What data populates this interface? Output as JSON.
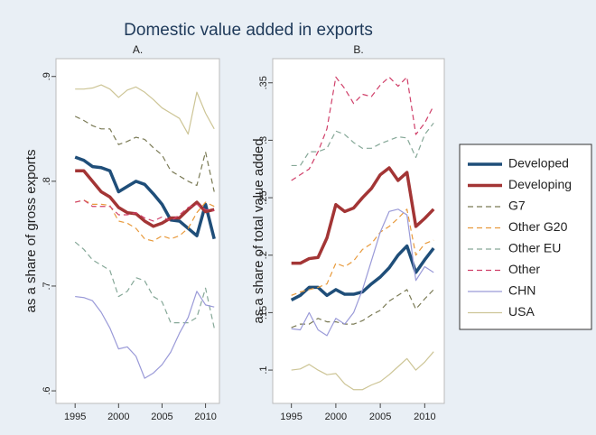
{
  "title": "Domestic value added in exports",
  "legend": [
    {
      "name": "Developed",
      "color": "#1f4e79",
      "width": 3.5,
      "dash": "none"
    },
    {
      "name": "Developing",
      "color": "#a33535",
      "width": 3.5,
      "dash": "none"
    },
    {
      "name": "G7",
      "color": "#7a7a55",
      "width": 1.2,
      "dash": "6 4"
    },
    {
      "name": "Other G20",
      "color": "#e89a3c",
      "width": 1.2,
      "dash": "6 4"
    },
    {
      "name": "Other EU",
      "color": "#86a898",
      "width": 1.2,
      "dash": "6 4"
    },
    {
      "name": "Other",
      "color": "#d0406a",
      "width": 1.2,
      "dash": "6 4"
    },
    {
      "name": "CHN",
      "color": "#9a9ad8",
      "width": 1.2,
      "dash": "none"
    },
    {
      "name": "USA",
      "color": "#cdc596",
      "width": 1.2,
      "dash": "none"
    }
  ],
  "chart_data": [
    {
      "type": "line",
      "title": "A.",
      "y_label": "as a share of gross exports",
      "x": [
        1995,
        1996,
        1997,
        1998,
        1999,
        2000,
        2001,
        2002,
        2003,
        2004,
        2005,
        2006,
        2007,
        2008,
        2009,
        2010,
        2011
      ],
      "xlim": [
        1992.8,
        2011.6
      ],
      "xticks": [
        1995,
        2000,
        2005,
        2010
      ],
      "ylim": [
        0.588,
        0.917
      ],
      "yticks": [
        {
          "value": 0.6,
          "label": ".6"
        },
        {
          "value": 0.7,
          "label": ".7"
        },
        {
          "value": 0.8,
          "label": ".8"
        },
        {
          "value": 0.9,
          "label": ".9"
        }
      ],
      "series": [
        {
          "values": [
            0.823,
            0.82,
            0.814,
            0.813,
            0.81,
            0.79,
            0.795,
            0.8,
            0.797,
            0.788,
            0.778,
            0.763,
            0.762,
            0.755,
            0.748,
            0.778,
            0.745
          ]
        },
        {
          "values": [
            0.81,
            0.81,
            0.8,
            0.79,
            0.785,
            0.775,
            0.77,
            0.769,
            0.762,
            0.757,
            0.76,
            0.765,
            0.765,
            0.773,
            0.78,
            0.771,
            0.773
          ]
        },
        {
          "values": [
            0.862,
            0.858,
            0.853,
            0.85,
            0.85,
            0.835,
            0.838,
            0.842,
            0.84,
            0.832,
            0.825,
            0.81,
            0.805,
            0.8,
            0.796,
            0.828,
            0.79
          ]
        },
        {
          "values": [
            0.78,
            0.782,
            0.778,
            0.778,
            0.777,
            0.762,
            0.76,
            0.755,
            0.745,
            0.743,
            0.748,
            0.745,
            0.748,
            0.755,
            0.77,
            0.78,
            0.776
          ]
        },
        {
          "values": [
            0.742,
            0.735,
            0.725,
            0.72,
            0.715,
            0.69,
            0.695,
            0.708,
            0.705,
            0.69,
            0.685,
            0.665,
            0.665,
            0.665,
            0.67,
            0.698,
            0.66
          ]
        },
        {
          "values": [
            0.78,
            0.782,
            0.776,
            0.776,
            0.776,
            0.768,
            0.768,
            0.77,
            0.765,
            0.762,
            0.766,
            0.762,
            0.768,
            0.775,
            0.778,
            0.773,
            0.772
          ]
        },
        {
          "values": [
            0.69,
            0.689,
            0.686,
            0.675,
            0.66,
            0.64,
            0.642,
            0.633,
            0.612,
            0.617,
            0.625,
            0.637,
            0.655,
            0.67,
            0.695,
            0.682,
            0.68
          ]
        },
        {
          "values": [
            0.888,
            0.888,
            0.889,
            0.892,
            0.888,
            0.88,
            0.887,
            0.89,
            0.885,
            0.878,
            0.87,
            0.865,
            0.86,
            0.845,
            0.885,
            0.865,
            0.85
          ]
        }
      ]
    },
    {
      "type": "line",
      "title": "B.",
      "y_label": "as a share of total value added",
      "x": [
        1995,
        1996,
        1997,
        1998,
        1999,
        2000,
        2001,
        2002,
        2003,
        2004,
        2005,
        2006,
        2007,
        2008,
        2009,
        2010,
        2011
      ],
      "xlim": [
        1992.9,
        2012.2
      ],
      "xticks": [
        1995,
        2000,
        2005,
        2010
      ],
      "ylim": [
        0.071,
        0.371
      ],
      "yticks": [
        {
          "value": 0.1,
          "label": ".1"
        },
        {
          "value": 0.15,
          "label": ".15"
        },
        {
          "value": 0.2,
          "label": ".2"
        },
        {
          "value": 0.25,
          "label": ".25"
        },
        {
          "value": 0.3,
          "label": ".3"
        },
        {
          "value": 0.35,
          "label": ".35"
        }
      ],
      "series": [
        {
          "values": [
            0.161,
            0.165,
            0.172,
            0.172,
            0.165,
            0.17,
            0.166,
            0.166,
            0.168,
            0.175,
            0.181,
            0.189,
            0.2,
            0.208,
            0.185,
            0.196,
            0.206
          ]
        },
        {
          "values": [
            0.193,
            0.193,
            0.197,
            0.198,
            0.215,
            0.244,
            0.238,
            0.241,
            0.25,
            0.258,
            0.27,
            0.276,
            0.265,
            0.272,
            0.225,
            0.232,
            0.24
          ]
        },
        {
          "values": [
            0.137,
            0.14,
            0.14,
            0.145,
            0.142,
            0.142,
            0.14,
            0.14,
            0.143,
            0.148,
            0.152,
            0.16,
            0.165,
            0.17,
            0.153,
            0.162,
            0.17
          ]
        },
        {
          "values": [
            0.165,
            0.168,
            0.17,
            0.172,
            0.175,
            0.193,
            0.19,
            0.195,
            0.205,
            0.21,
            0.22,
            0.225,
            0.232,
            0.24,
            0.2,
            0.21,
            0.213
          ]
        },
        {
          "values": [
            0.278,
            0.278,
            0.29,
            0.29,
            0.293,
            0.308,
            0.305,
            0.298,
            0.293,
            0.293,
            0.297,
            0.3,
            0.303,
            0.302,
            0.285,
            0.305,
            0.315
          ]
        },
        {
          "values": [
            0.265,
            0.27,
            0.275,
            0.29,
            0.31,
            0.355,
            0.345,
            0.332,
            0.34,
            0.338,
            0.348,
            0.355,
            0.347,
            0.355,
            0.305,
            0.315,
            0.33
          ]
        },
        {
          "values": [
            0.136,
            0.135,
            0.15,
            0.135,
            0.13,
            0.145,
            0.14,
            0.15,
            0.17,
            0.195,
            0.22,
            0.238,
            0.24,
            0.235,
            0.178,
            0.19,
            0.185
          ]
        },
        {
          "values": [
            0.1,
            0.101,
            0.105,
            0.1,
            0.096,
            0.097,
            0.088,
            0.083,
            0.083,
            0.087,
            0.09,
            0.096,
            0.103,
            0.11,
            0.1,
            0.107,
            0.116
          ]
        }
      ]
    }
  ]
}
